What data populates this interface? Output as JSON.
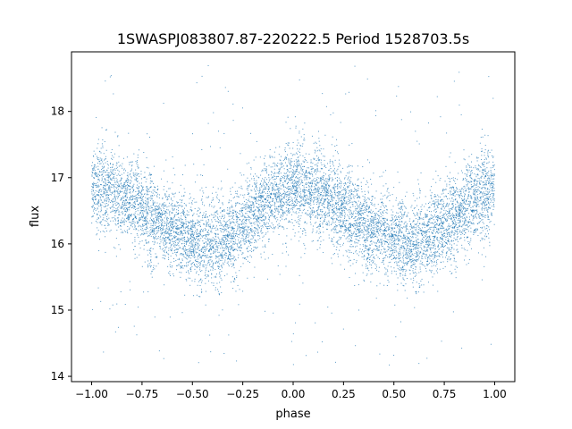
{
  "chart_data": {
    "type": "scatter",
    "title": "1SWASPJ083807.87-220222.5 Period 1528703.5s",
    "xlabel": "phase",
    "ylabel": "flux",
    "xlim": [
      -1.1,
      1.1
    ],
    "ylim": [
      13.92,
      18.9
    ],
    "x_ticks": [
      -1.0,
      -0.75,
      -0.5,
      -0.25,
      0.0,
      0.25,
      0.5,
      0.75,
      1.0
    ],
    "x_tick_labels": [
      "−1.00",
      "−0.75",
      "−0.50",
      "−0.25",
      "0.00",
      "0.25",
      "0.50",
      "0.75",
      "1.00"
    ],
    "y_ticks": [
      14,
      15,
      16,
      17,
      18
    ],
    "y_tick_labels": [
      "14",
      "15",
      "16",
      "17",
      "18"
    ],
    "grid": false,
    "legend": "none",
    "marker_color": "#1f77b4",
    "series": [
      {
        "trend": {
          "x": [
            -1.0,
            -0.9,
            -0.8,
            -0.7,
            -0.6,
            -0.5,
            -0.4,
            -0.3,
            -0.2,
            -0.1,
            0.0,
            0.1,
            0.2,
            0.3,
            0.4,
            0.5,
            0.6,
            0.7,
            0.8,
            0.9,
            1.0
          ],
          "y": [
            16.85,
            16.8,
            16.65,
            16.4,
            16.2,
            16.05,
            16.0,
            16.15,
            16.4,
            16.7,
            16.85,
            16.8,
            16.65,
            16.4,
            16.2,
            16.05,
            16.0,
            16.15,
            16.4,
            16.7,
            16.85
          ]
        },
        "scatter_sd": 0.3,
        "point_count": 9000,
        "outlier_range": [
          14.15,
          18.7
        ]
      }
    ]
  }
}
